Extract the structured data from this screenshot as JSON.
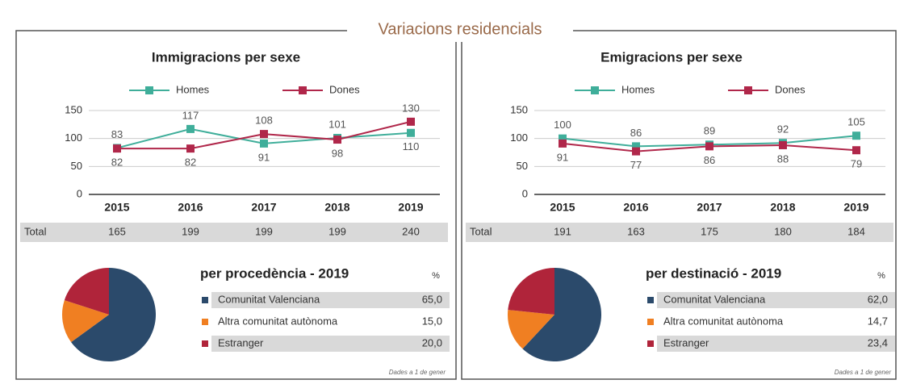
{
  "title": "Variacions residencials",
  "chart_data": [
    {
      "type": "line",
      "title": "Immigracions per sexe",
      "categories": [
        "2015",
        "2016",
        "2017",
        "2018",
        "2019"
      ],
      "series": [
        {
          "name": "Homes",
          "color": "#3fae9a",
          "values": [
            83,
            117,
            91,
            101,
            110
          ]
        },
        {
          "name": "Dones",
          "color": "#b0274a",
          "values": [
            82,
            82,
            108,
            98,
            130
          ]
        }
      ],
      "ylim": [
        0,
        150
      ],
      "yticks": [
        0,
        50,
        100,
        150
      ],
      "total_label": "Total",
      "totals": [
        165,
        199,
        199,
        199,
        240
      ]
    },
    {
      "type": "pie",
      "title": "per procedència - 2019",
      "unit_label": "%",
      "categories": [
        "Comunitat Valenciana",
        "Altra comunitat autònoma",
        "Estranger"
      ],
      "values": [
        65.0,
        15.0,
        20.0
      ],
      "value_labels": [
        "65,0",
        "15,0",
        "20,0"
      ],
      "colors": [
        "#2b4a6b",
        "#f07f22",
        "#b0243a"
      ],
      "note": "Dades a 1 de gener"
    },
    {
      "type": "line",
      "title": "Emigracions per sexe",
      "categories": [
        "2015",
        "2016",
        "2017",
        "2018",
        "2019"
      ],
      "series": [
        {
          "name": "Homes",
          "color": "#3fae9a",
          "values": [
            100,
            86,
            89,
            92,
            105
          ]
        },
        {
          "name": "Dones",
          "color": "#b0274a",
          "values": [
            91,
            77,
            86,
            88,
            79
          ]
        }
      ],
      "ylim": [
        0,
        150
      ],
      "yticks": [
        0,
        50,
        100,
        150
      ],
      "total_label": "Total",
      "totals": [
        191,
        163,
        175,
        180,
        184
      ]
    },
    {
      "type": "pie",
      "title": "per destinació - 2019",
      "unit_label": "%",
      "categories": [
        "Comunitat Valenciana",
        "Altra comunitat autònoma",
        "Estranger"
      ],
      "values": [
        62.0,
        14.7,
        23.4
      ],
      "value_labels": [
        "62,0",
        "14,7",
        "23,4"
      ],
      "colors": [
        "#2b4a6b",
        "#f07f22",
        "#b0243a"
      ],
      "note": "Dades a 1 de gener"
    }
  ]
}
